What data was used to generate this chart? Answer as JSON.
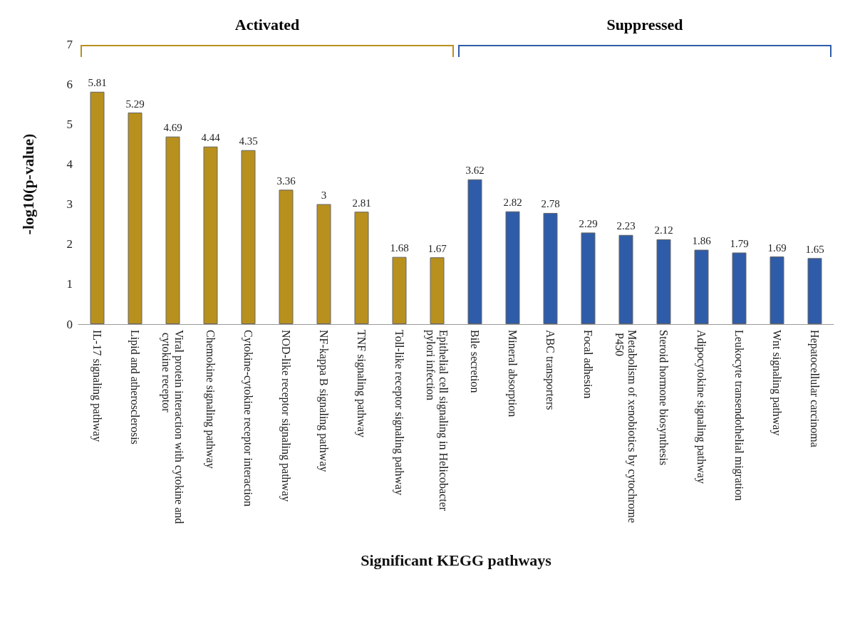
{
  "chart_data": {
    "type": "bar",
    "xlabel": "Significant KEGG pathways",
    "ylabel": "-log10(p-value)",
    "categories": [
      "IL-17 signaling pathway",
      "Lipid and atherosclerosis",
      "Viral protein interaction with cytokine and cytokine receptor",
      "Chemokine signaling pathway",
      "Cytokine-cytokine receptor interaction",
      "NOD-like receptor signaling pathway",
      "NF-kappa B signaling pathway",
      "TNF signaling pathway",
      "Toll-like receptor signaling pathway",
      "Epithelial cell signaling in Helicobacter pylori infection",
      "Bile secretion",
      "Mineral absorption",
      "ABC transporters",
      "Focal adhesion",
      "Metabolism of xenobiotics by cytochrome P450",
      "Steroid hormone biosynthesis",
      "Adipocytokine signaling pathway",
      "Leukocyte transendothelial migration",
      "Wnt signaling pathway",
      "Hepatocellular carcinoma"
    ],
    "values": [
      5.81,
      5.29,
      4.69,
      4.44,
      4.35,
      3.36,
      3,
      2.81,
      1.68,
      1.67,
      3.62,
      2.82,
      2.78,
      2.29,
      2.23,
      2.12,
      1.86,
      1.79,
      1.69,
      1.65
    ],
    "colors": [
      "#b8901e",
      "#b8901e",
      "#b8901e",
      "#b8901e",
      "#b8901e",
      "#b8901e",
      "#b8901e",
      "#b8901e",
      "#b8901e",
      "#b8901e",
      "#2f5ca8",
      "#2f5ca8",
      "#2f5ca8",
      "#2f5ca8",
      "#2f5ca8",
      "#2f5ca8",
      "#2f5ca8",
      "#2f5ca8",
      "#2f5ca8",
      "#2f5ca8"
    ],
    "annotations": [
      "Activated",
      "Suppressed"
    ],
    "data_labels": true,
    "ylim": [
      0,
      7
    ],
    "yticks": [
      0,
      1,
      2,
      3,
      4,
      5,
      6,
      7
    ]
  }
}
